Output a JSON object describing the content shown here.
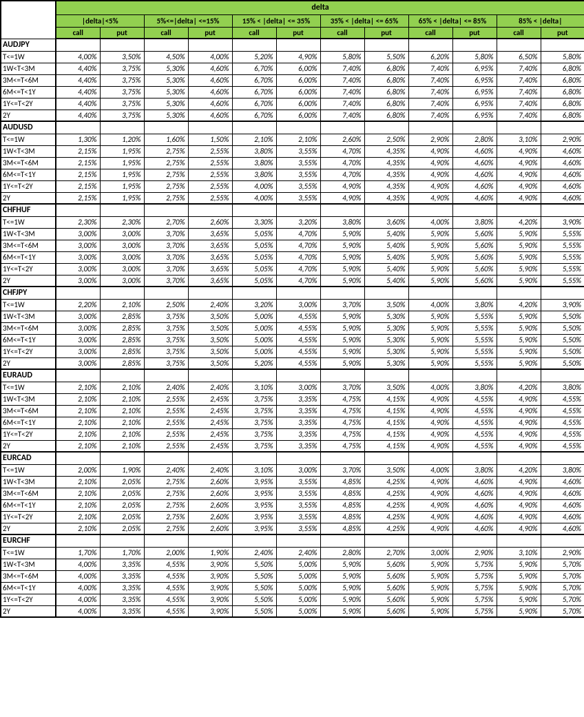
{
  "header": {
    "mainTitle": "delta",
    "buckets": [
      "|delta|<5%",
      "5%<=|delta| <=15%",
      "15% < |delta| <= 35%",
      "35% < |delta| <= 65%",
      "65% < |delta| <= 85%",
      "85% < |delta|"
    ],
    "sub": [
      "call",
      "put",
      "call",
      "put",
      "call",
      "put",
      "call",
      "put",
      "call",
      "put",
      "call",
      "put"
    ]
  },
  "colors": {
    "headerBg": "#92d050",
    "border": "#000000",
    "text": "#000000",
    "background": "#ffffff"
  },
  "tenors": [
    "T<=1W",
    "1W<T<3M",
    "3M<=T<6M",
    "6M<=T<1Y",
    "1Y<=T<2Y",
    "2Y"
  ],
  "sections": [
    {
      "name": "AUDJPY",
      "rows": [
        [
          "4,00%",
          "3,50%",
          "4,50%",
          "4,00%",
          "5,20%",
          "4,90%",
          "5,80%",
          "5,50%",
          "6,20%",
          "5,80%",
          "6,50%",
          "5,80%"
        ],
        [
          "4,40%",
          "3,75%",
          "5,30%",
          "4,60%",
          "6,70%",
          "6,00%",
          "7,40%",
          "6,80%",
          "7,40%",
          "6,95%",
          "7,40%",
          "6,80%"
        ],
        [
          "4,40%",
          "3,75%",
          "5,30%",
          "4,60%",
          "6,70%",
          "6,00%",
          "7,40%",
          "6,80%",
          "7,40%",
          "6,95%",
          "7,40%",
          "6,80%"
        ],
        [
          "4,40%",
          "3,75%",
          "5,30%",
          "4,60%",
          "6,70%",
          "6,00%",
          "7,40%",
          "6,80%",
          "7,40%",
          "6,95%",
          "7,40%",
          "6,80%"
        ],
        [
          "4,40%",
          "3,75%",
          "5,30%",
          "4,60%",
          "6,70%",
          "6,00%",
          "7,40%",
          "6,80%",
          "7,40%",
          "6,95%",
          "7,40%",
          "6,80%"
        ],
        [
          "4,40%",
          "3,75%",
          "5,30%",
          "4,60%",
          "6,70%",
          "6,00%",
          "7,40%",
          "6,80%",
          "7,40%",
          "6,95%",
          "7,40%",
          "6,80%"
        ]
      ]
    },
    {
      "name": "AUDUSD",
      "rows": [
        [
          "1,30%",
          "1,20%",
          "1,60%",
          "1,50%",
          "2,10%",
          "2,10%",
          "2,60%",
          "2,50%",
          "2,90%",
          "2,80%",
          "3,10%",
          "2,90%"
        ],
        [
          "2,15%",
          "1,95%",
          "2,75%",
          "2,55%",
          "3,80%",
          "3,55%",
          "4,70%",
          "4,35%",
          "4,90%",
          "4,60%",
          "4,90%",
          "4,60%"
        ],
        [
          "2,15%",
          "1,95%",
          "2,75%",
          "2,55%",
          "3,80%",
          "3,55%",
          "4,70%",
          "4,35%",
          "4,90%",
          "4,60%",
          "4,90%",
          "4,60%"
        ],
        [
          "2,15%",
          "1,95%",
          "2,75%",
          "2,55%",
          "3,80%",
          "3,55%",
          "4,70%",
          "4,35%",
          "4,90%",
          "4,60%",
          "4,90%",
          "4,60%"
        ],
        [
          "2,15%",
          "1,95%",
          "2,75%",
          "2,55%",
          "4,00%",
          "3,55%",
          "4,90%",
          "4,35%",
          "4,90%",
          "4,60%",
          "4,90%",
          "4,60%"
        ],
        [
          "2,15%",
          "1,95%",
          "2,75%",
          "2,55%",
          "4,00%",
          "3,55%",
          "4,90%",
          "4,35%",
          "4,90%",
          "4,60%",
          "4,90%",
          "4,60%"
        ]
      ]
    },
    {
      "name": "CHFHUF",
      "rows": [
        [
          "2,30%",
          "2,30%",
          "2,70%",
          "2,60%",
          "3,30%",
          "3,20%",
          "3,80%",
          "3,60%",
          "4,00%",
          "3,80%",
          "4,20%",
          "3,90%"
        ],
        [
          "3,00%",
          "3,00%",
          "3,70%",
          "3,65%",
          "5,05%",
          "4,70%",
          "5,90%",
          "5,40%",
          "5,90%",
          "5,60%",
          "5,90%",
          "5,55%"
        ],
        [
          "3,00%",
          "3,00%",
          "3,70%",
          "3,65%",
          "5,05%",
          "4,70%",
          "5,90%",
          "5,40%",
          "5,90%",
          "5,60%",
          "5,90%",
          "5,55%"
        ],
        [
          "3,00%",
          "3,00%",
          "3,70%",
          "3,65%",
          "5,05%",
          "4,70%",
          "5,90%",
          "5,40%",
          "5,90%",
          "5,60%",
          "5,90%",
          "5,55%"
        ],
        [
          "3,00%",
          "3,00%",
          "3,70%",
          "3,65%",
          "5,05%",
          "4,70%",
          "5,90%",
          "5,40%",
          "5,90%",
          "5,60%",
          "5,90%",
          "5,55%"
        ],
        [
          "3,00%",
          "3,00%",
          "3,70%",
          "3,65%",
          "5,05%",
          "4,70%",
          "5,90%",
          "5,40%",
          "5,90%",
          "5,60%",
          "5,90%",
          "5,55%"
        ]
      ]
    },
    {
      "name": "CHFJPY",
      "rows": [
        [
          "2,20%",
          "2,10%",
          "2,50%",
          "2,40%",
          "3,20%",
          "3,00%",
          "3,70%",
          "3,50%",
          "4,00%",
          "3,80%",
          "4,20%",
          "3,90%"
        ],
        [
          "3,00%",
          "2,85%",
          "3,75%",
          "3,50%",
          "5,00%",
          "4,55%",
          "5,90%",
          "5,30%",
          "5,90%",
          "5,55%",
          "5,90%",
          "5,50%"
        ],
        [
          "3,00%",
          "2,85%",
          "3,75%",
          "3,50%",
          "5,00%",
          "4,55%",
          "5,90%",
          "5,30%",
          "5,90%",
          "5,55%",
          "5,90%",
          "5,50%"
        ],
        [
          "3,00%",
          "2,85%",
          "3,75%",
          "3,50%",
          "5,00%",
          "4,55%",
          "5,90%",
          "5,30%",
          "5,90%",
          "5,55%",
          "5,90%",
          "5,50%"
        ],
        [
          "3,00%",
          "2,85%",
          "3,75%",
          "3,50%",
          "5,00%",
          "4,55%",
          "5,90%",
          "5,30%",
          "5,90%",
          "5,55%",
          "5,90%",
          "5,50%"
        ],
        [
          "3,00%",
          "2,85%",
          "3,75%",
          "3,50%",
          "5,20%",
          "4,55%",
          "5,90%",
          "5,30%",
          "5,90%",
          "5,55%",
          "5,90%",
          "5,50%"
        ]
      ]
    },
    {
      "name": "EURAUD",
      "rows": [
        [
          "2,10%",
          "2,10%",
          "2,40%",
          "2,40%",
          "3,10%",
          "3,00%",
          "3,70%",
          "3,50%",
          "4,00%",
          "3,80%",
          "4,20%",
          "3,80%"
        ],
        [
          "2,10%",
          "2,10%",
          "2,55%",
          "2,45%",
          "3,75%",
          "3,35%",
          "4,75%",
          "4,15%",
          "4,90%",
          "4,55%",
          "4,90%",
          "4,55%"
        ],
        [
          "2,10%",
          "2,10%",
          "2,55%",
          "2,45%",
          "3,75%",
          "3,35%",
          "4,75%",
          "4,15%",
          "4,90%",
          "4,55%",
          "4,90%",
          "4,55%"
        ],
        [
          "2,10%",
          "2,10%",
          "2,55%",
          "2,45%",
          "3,75%",
          "3,35%",
          "4,75%",
          "4,15%",
          "4,90%",
          "4,55%",
          "4,90%",
          "4,55%"
        ],
        [
          "2,10%",
          "2,10%",
          "2,55%",
          "2,45%",
          "3,75%",
          "3,35%",
          "4,75%",
          "4,15%",
          "4,90%",
          "4,55%",
          "4,90%",
          "4,55%"
        ],
        [
          "2,10%",
          "2,10%",
          "2,55%",
          "2,45%",
          "3,75%",
          "3,35%",
          "4,75%",
          "4,15%",
          "4,90%",
          "4,55%",
          "4,90%",
          "4,55%"
        ]
      ]
    },
    {
      "name": "EURCAD",
      "rows": [
        [
          "2,00%",
          "1,90%",
          "2,40%",
          "2,40%",
          "3,10%",
          "3,00%",
          "3,70%",
          "3,50%",
          "4,00%",
          "3,80%",
          "4,20%",
          "3,80%"
        ],
        [
          "2,10%",
          "2,05%",
          "2,75%",
          "2,60%",
          "3,95%",
          "3,55%",
          "4,85%",
          "4,25%",
          "4,90%",
          "4,60%",
          "4,90%",
          "4,60%"
        ],
        [
          "2,10%",
          "2,05%",
          "2,75%",
          "2,60%",
          "3,95%",
          "3,55%",
          "4,85%",
          "4,25%",
          "4,90%",
          "4,60%",
          "4,90%",
          "4,60%"
        ],
        [
          "2,10%",
          "2,05%",
          "2,75%",
          "2,60%",
          "3,95%",
          "3,55%",
          "4,85%",
          "4,25%",
          "4,90%",
          "4,60%",
          "4,90%",
          "4,60%"
        ],
        [
          "2,10%",
          "2,05%",
          "2,75%",
          "2,60%",
          "3,95%",
          "3,55%",
          "4,85%",
          "4,25%",
          "4,90%",
          "4,60%",
          "4,90%",
          "4,60%"
        ],
        [
          "2,10%",
          "2,05%",
          "2,75%",
          "2,60%",
          "3,95%",
          "3,55%",
          "4,85%",
          "4,25%",
          "4,90%",
          "4,60%",
          "4,90%",
          "4,60%"
        ]
      ]
    },
    {
      "name": "EURCHF",
      "rows": [
        [
          "1,70%",
          "1,70%",
          "2,00%",
          "1,90%",
          "2,40%",
          "2,40%",
          "2,80%",
          "2,70%",
          "3,00%",
          "2,90%",
          "3,10%",
          "2,90%"
        ],
        [
          "4,00%",
          "3,35%",
          "4,55%",
          "3,90%",
          "5,50%",
          "5,00%",
          "5,90%",
          "5,60%",
          "5,90%",
          "5,75%",
          "5,90%",
          "5,70%"
        ],
        [
          "4,00%",
          "3,35%",
          "4,55%",
          "3,90%",
          "5,50%",
          "5,00%",
          "5,90%",
          "5,60%",
          "5,90%",
          "5,75%",
          "5,90%",
          "5,70%"
        ],
        [
          "4,00%",
          "3,35%",
          "4,55%",
          "3,90%",
          "5,50%",
          "5,00%",
          "5,90%",
          "5,60%",
          "5,90%",
          "5,75%",
          "5,90%",
          "5,70%"
        ],
        [
          "4,00%",
          "3,35%",
          "4,55%",
          "3,90%",
          "5,50%",
          "5,00%",
          "5,90%",
          "5,60%",
          "5,90%",
          "5,75%",
          "5,90%",
          "5,70%"
        ],
        [
          "4,00%",
          "3,35%",
          "4,55%",
          "3,90%",
          "5,50%",
          "5,00%",
          "5,90%",
          "5,60%",
          "5,90%",
          "5,75%",
          "5,90%",
          "5,70%"
        ]
      ]
    }
  ]
}
